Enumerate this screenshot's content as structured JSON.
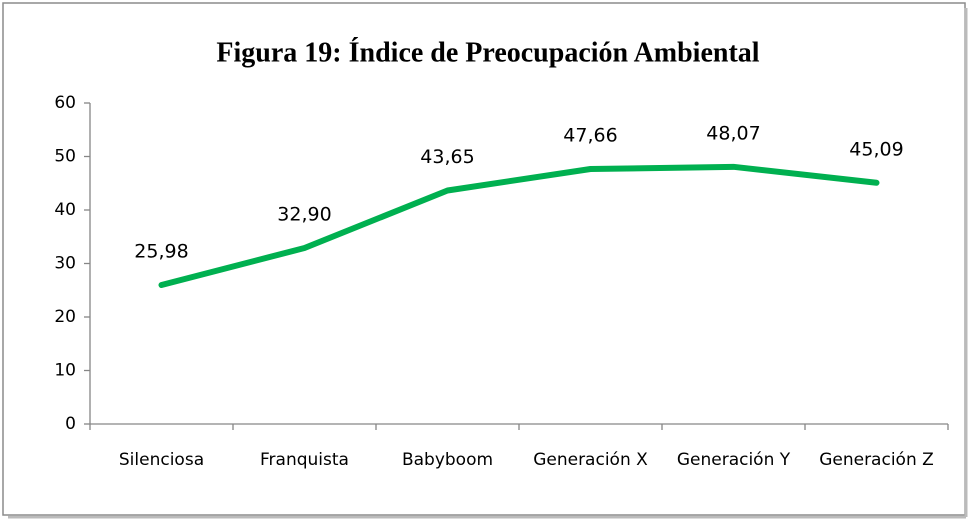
{
  "chart_data": {
    "type": "line",
    "title": "Figura 19: Índice de Preocupación Ambiental",
    "categories": [
      "Silenciosa",
      "Franquista",
      "Babyboom",
      "Generación X",
      "Generación Y",
      "Generación Z"
    ],
    "values": [
      25.98,
      32.9,
      43.65,
      47.66,
      48.07,
      45.09
    ],
    "value_labels": [
      "25,98",
      "32,90",
      "43,65",
      "47,66",
      "48,07",
      "45,09"
    ],
    "color": "#00b050",
    "ylim": [
      0,
      60
    ],
    "yticks": [
      0,
      10,
      20,
      30,
      40,
      50,
      60
    ],
    "grid": false
  }
}
